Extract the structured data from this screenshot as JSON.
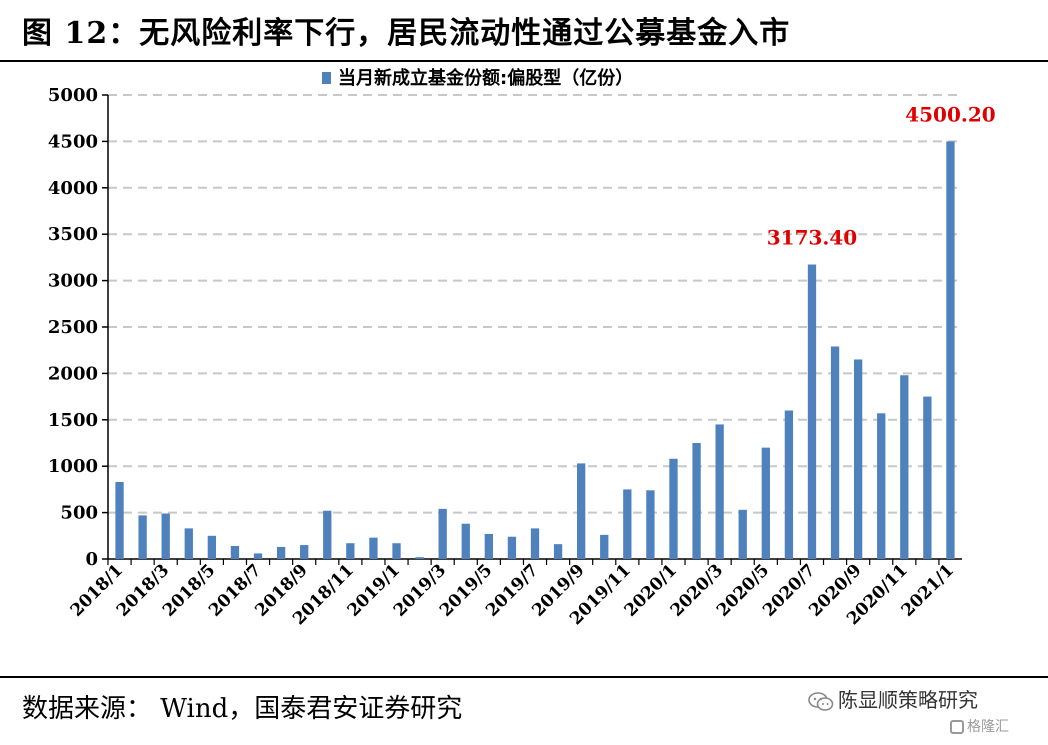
{
  "header": {
    "title": "图 12：无风险利率下行，居民流动性通过公募基金入市"
  },
  "footer": {
    "source": "数据来源： Wind，国泰君安证券研究",
    "brand": "陈显顺策略研究",
    "watermark": "格隆汇"
  },
  "colors": {
    "bar": "#4f81bd",
    "annotation": "#e00000",
    "grid": "#c8c8c8"
  },
  "chart_data": {
    "type": "bar",
    "title": "",
    "xlabel": "",
    "ylabel": "",
    "ylim": [
      0,
      5000
    ],
    "yticks": [
      0,
      500,
      1000,
      1500,
      2000,
      2500,
      3000,
      3500,
      4000,
      4500,
      5000
    ],
    "grid": true,
    "legend": "top-center",
    "series": [
      {
        "name": "当月新成立基金份额:偏股型（亿份）",
        "values": [
          830,
          470,
          490,
          330,
          250,
          140,
          60,
          130,
          150,
          520,
          170,
          230,
          170,
          20,
          540,
          380,
          270,
          240,
          330,
          160,
          1030,
          260,
          750,
          740,
          1080,
          1250,
          1450,
          530,
          1200,
          1600,
          3173.4,
          2290,
          2150,
          1570,
          1980,
          1750,
          4500.2
        ]
      }
    ],
    "categories": [
      "2018/1",
      "2018/2",
      "2018/3",
      "2018/4",
      "2018/5",
      "2018/6",
      "2018/7",
      "2018/8",
      "2018/9",
      "2018/10",
      "2018/11",
      "2018/12",
      "2019/1",
      "2019/2",
      "2019/3",
      "2019/4",
      "2019/5",
      "2019/6",
      "2019/7",
      "2019/8",
      "2019/9",
      "2019/10",
      "2019/11",
      "2019/12",
      "2020/1",
      "2020/2",
      "2020/3",
      "2020/4",
      "2020/5",
      "2020/6",
      "2020/7",
      "2020/8",
      "2020/9",
      "2020/10",
      "2020/11",
      "2020/12",
      "2021/1"
    ],
    "x_tick_labels": [
      "2018/1",
      "2018/3",
      "2018/5",
      "2018/7",
      "2018/9",
      "2018/11",
      "2019/1",
      "2019/3",
      "2019/5",
      "2019/7",
      "2019/9",
      "2019/11",
      "2020/1",
      "2020/3",
      "2020/5",
      "2020/7",
      "2020/9",
      "2020/11",
      "2021/1"
    ],
    "annotations": [
      {
        "category": "2020/7",
        "text": "3173.40"
      },
      {
        "category": "2021/1",
        "text": "4500.20"
      }
    ]
  }
}
